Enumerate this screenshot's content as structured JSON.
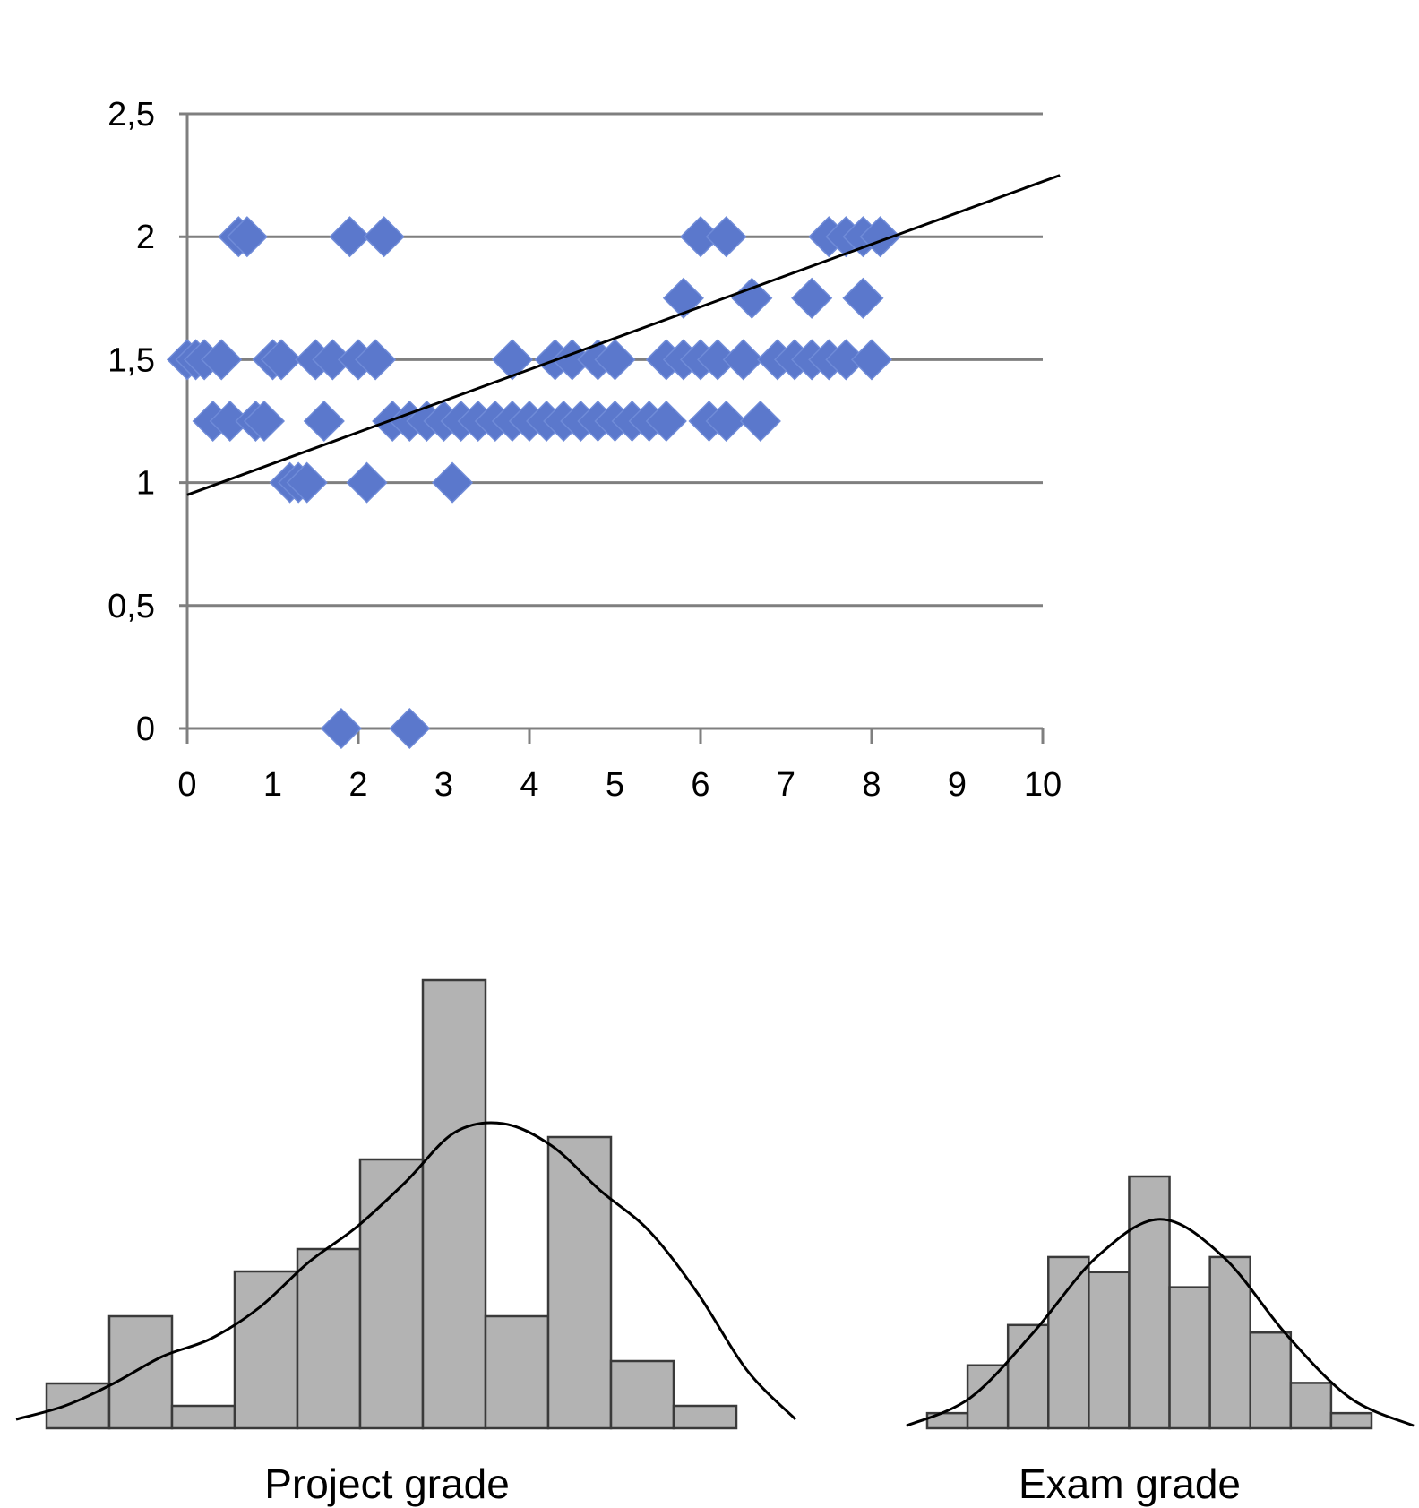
{
  "chart_data": [
    {
      "type": "scatter",
      "title": "",
      "xlabel": "",
      "ylabel": "",
      "xlim": [
        0,
        10
      ],
      "ylim": [
        0,
        2.5
      ],
      "grid": "horizontal",
      "x_ticks": [
        "0",
        "1",
        "2",
        "3",
        "4",
        "5",
        "6",
        "7",
        "8",
        "9",
        "10"
      ],
      "y_ticks": [
        "0",
        "0,5",
        "1",
        "1,5",
        "2",
        "2,5"
      ],
      "marker": "diamond",
      "marker_color": "#5b78cc",
      "points": [
        {
          "x": 0.6,
          "y": 2
        },
        {
          "x": 0.7,
          "y": 2
        },
        {
          "x": 1.9,
          "y": 2
        },
        {
          "x": 2.3,
          "y": 2
        },
        {
          "x": 6.0,
          "y": 2
        },
        {
          "x": 6.3,
          "y": 2
        },
        {
          "x": 7.5,
          "y": 2
        },
        {
          "x": 7.7,
          "y": 2
        },
        {
          "x": 7.9,
          "y": 2
        },
        {
          "x": 8.1,
          "y": 2
        },
        {
          "x": 5.8,
          "y": 1.75
        },
        {
          "x": 6.6,
          "y": 1.75
        },
        {
          "x": 7.3,
          "y": 1.75
        },
        {
          "x": 7.9,
          "y": 1.75
        },
        {
          "x": 0.0,
          "y": 1.5
        },
        {
          "x": 0.1,
          "y": 1.5
        },
        {
          "x": 0.2,
          "y": 1.5
        },
        {
          "x": 0.4,
          "y": 1.5
        },
        {
          "x": 1.0,
          "y": 1.5
        },
        {
          "x": 1.1,
          "y": 1.5
        },
        {
          "x": 1.5,
          "y": 1.5
        },
        {
          "x": 1.7,
          "y": 1.5
        },
        {
          "x": 2.0,
          "y": 1.5
        },
        {
          "x": 2.2,
          "y": 1.5
        },
        {
          "x": 3.8,
          "y": 1.5
        },
        {
          "x": 4.3,
          "y": 1.5
        },
        {
          "x": 4.5,
          "y": 1.5
        },
        {
          "x": 4.8,
          "y": 1.5
        },
        {
          "x": 5.0,
          "y": 1.5
        },
        {
          "x": 5.6,
          "y": 1.5
        },
        {
          "x": 5.8,
          "y": 1.5
        },
        {
          "x": 6.0,
          "y": 1.5
        },
        {
          "x": 6.2,
          "y": 1.5
        },
        {
          "x": 6.5,
          "y": 1.5
        },
        {
          "x": 6.9,
          "y": 1.5
        },
        {
          "x": 7.1,
          "y": 1.5
        },
        {
          "x": 7.3,
          "y": 1.5
        },
        {
          "x": 7.5,
          "y": 1.5
        },
        {
          "x": 7.7,
          "y": 1.5
        },
        {
          "x": 8.0,
          "y": 1.5
        },
        {
          "x": 0.3,
          "y": 1.25
        },
        {
          "x": 0.5,
          "y": 1.25
        },
        {
          "x": 0.8,
          "y": 1.25
        },
        {
          "x": 0.9,
          "y": 1.25
        },
        {
          "x": 1.6,
          "y": 1.25
        },
        {
          "x": 2.4,
          "y": 1.25
        },
        {
          "x": 2.6,
          "y": 1.25
        },
        {
          "x": 2.8,
          "y": 1.25
        },
        {
          "x": 3.0,
          "y": 1.25
        },
        {
          "x": 3.2,
          "y": 1.25
        },
        {
          "x": 3.4,
          "y": 1.25
        },
        {
          "x": 3.6,
          "y": 1.25
        },
        {
          "x": 3.8,
          "y": 1.25
        },
        {
          "x": 4.0,
          "y": 1.25
        },
        {
          "x": 4.2,
          "y": 1.25
        },
        {
          "x": 4.4,
          "y": 1.25
        },
        {
          "x": 4.6,
          "y": 1.25
        },
        {
          "x": 4.8,
          "y": 1.25
        },
        {
          "x": 5.0,
          "y": 1.25
        },
        {
          "x": 5.2,
          "y": 1.25
        },
        {
          "x": 5.4,
          "y": 1.25
        },
        {
          "x": 5.6,
          "y": 1.25
        },
        {
          "x": 6.1,
          "y": 1.25
        },
        {
          "x": 6.3,
          "y": 1.25
        },
        {
          "x": 6.7,
          "y": 1.25
        },
        {
          "x": 1.2,
          "y": 1
        },
        {
          "x": 1.3,
          "y": 1
        },
        {
          "x": 1.4,
          "y": 1
        },
        {
          "x": 2.1,
          "y": 1
        },
        {
          "x": 3.1,
          "y": 1
        },
        {
          "x": 1.8,
          "y": 0
        },
        {
          "x": 2.6,
          "y": 0
        }
      ],
      "trendline": {
        "x": [
          0,
          10.2
        ],
        "y": [
          0.95,
          2.25
        ]
      }
    },
    {
      "type": "histogram",
      "xlabel": "Project grade",
      "bars": [
        0.1,
        0.25,
        0.05,
        0.35,
        0.4,
        0.6,
        1.0,
        0.25,
        0.65,
        0.15,
        0.05
      ],
      "density_curve": [
        0.02,
        0.05,
        0.1,
        0.16,
        0.2,
        0.27,
        0.37,
        0.45,
        0.55,
        0.66,
        0.68,
        0.63,
        0.53,
        0.44,
        0.3,
        0.13,
        0.02
      ],
      "bar_color": "#b3b3b3"
    },
    {
      "type": "histogram",
      "xlabel": "Exam grade",
      "bars": [
        0.06,
        0.25,
        0.41,
        0.68,
        0.62,
        1.0,
        0.56,
        0.68,
        0.38,
        0.18,
        0.06
      ],
      "density_curve": [
        0.01,
        0.12,
        0.38,
        0.68,
        0.83,
        0.68,
        0.37,
        0.12,
        0.01
      ],
      "bar_color": "#b3b3b3"
    }
  ]
}
